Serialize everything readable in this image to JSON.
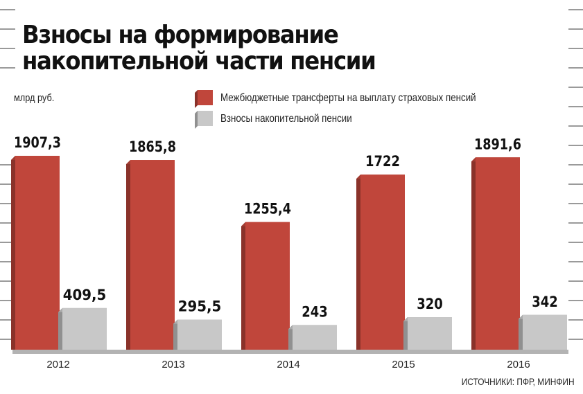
{
  "title": {
    "line1": "Взносы на формирование",
    "line2": "накопительной части пенсии"
  },
  "unit": "млрд руб.",
  "legend": [
    {
      "label": "Межбюджетные трансферты на выплату страховых пенсий",
      "color": "#c0463b"
    },
    {
      "label": "Взносы накопительной пенсии",
      "color": "#c8c8c8"
    }
  ],
  "source": "ИСТОЧНИКИ: ПФР, МИНФИН",
  "colors": {
    "background_stripes": "#9a9a9a",
    "floor": "#b3b3b3"
  },
  "chart_data": {
    "type": "bar",
    "categories": [
      "2012",
      "2013",
      "2014",
      "2015",
      "2016"
    ],
    "series": [
      {
        "name": "Межбюджетные трансферты на выплату страховых пенсий",
        "values": [
          1907.3,
          1865.8,
          1255.4,
          1722,
          1891.6
        ],
        "labels": [
          "1907,3",
          "1865,8",
          "1255,4",
          "1722",
          "1891,6"
        ],
        "color": "#c0463b"
      },
      {
        "name": "Взносы накопительной пенсии",
        "values": [
          409.5,
          295.5,
          243,
          320,
          342
        ],
        "labels": [
          "409,5",
          "295,5",
          "243",
          "320",
          "342"
        ],
        "color": "#c8c8c8"
      }
    ],
    "ylabel": "млрд руб.",
    "ylim": [
      0,
      1907.3
    ],
    "grid": true
  }
}
